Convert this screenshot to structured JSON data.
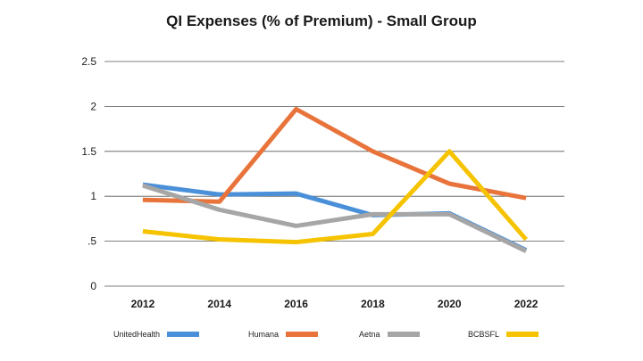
{
  "chart_data": {
    "type": "line",
    "title": "QI Expenses (% of Premium) - Small Group",
    "x": [
      "2012",
      "2014",
      "2016",
      "2018",
      "2020",
      "2022"
    ],
    "y_ticks": [
      "0",
      ".5",
      "1",
      "1.5",
      "2",
      "2.5"
    ],
    "ylim": [
      0,
      2.5
    ],
    "grid": true,
    "legend_position": "bottom",
    "series": [
      {
        "name": "UnitedHealth",
        "color": "#4a90d9",
        "values": [
          1.13,
          1.02,
          1.03,
          0.79,
          0.81,
          0.4
        ]
      },
      {
        "name": "Humana",
        "color": "#e8743b",
        "values": [
          0.96,
          0.94,
          1.97,
          1.5,
          1.14,
          0.98
        ]
      },
      {
        "name": "Aetna",
        "color": "#a6a6a6",
        "values": [
          1.12,
          0.85,
          0.67,
          0.8,
          0.8,
          0.39
        ]
      },
      {
        "name": "BCBSFL",
        "color": "#f6c300",
        "values": [
          0.61,
          0.52,
          0.49,
          0.58,
          1.5,
          0.52
        ]
      }
    ]
  }
}
